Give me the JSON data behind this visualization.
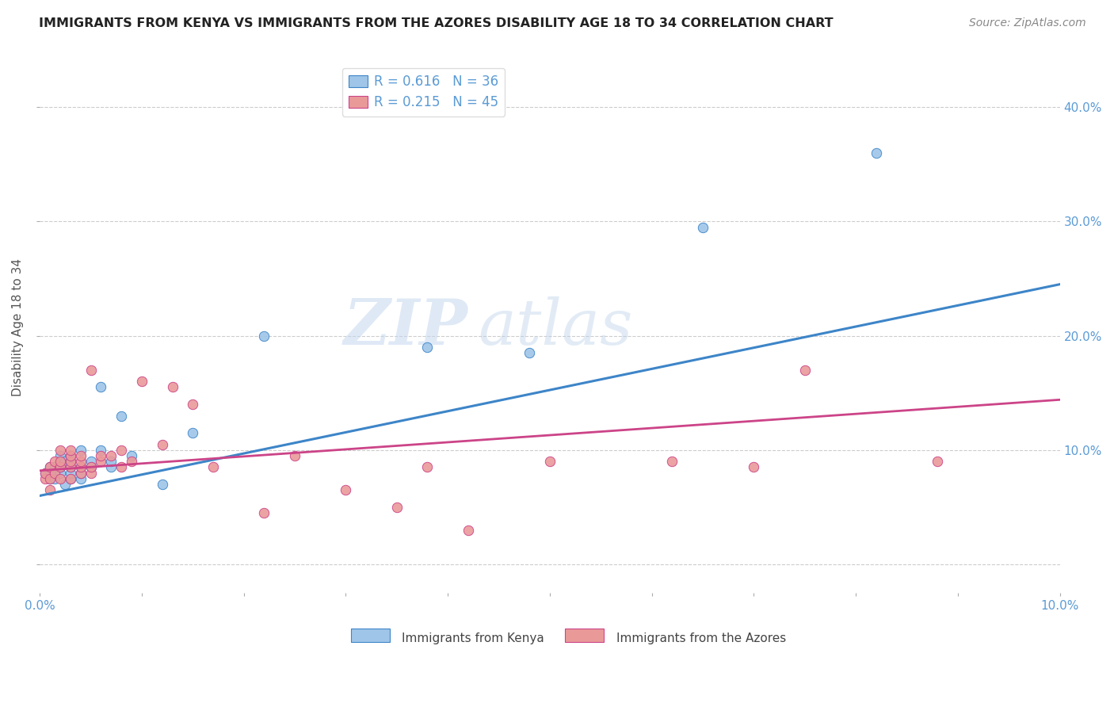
{
  "title": "IMMIGRANTS FROM KENYA VS IMMIGRANTS FROM THE AZORES DISABILITY AGE 18 TO 34 CORRELATION CHART",
  "source": "Source: ZipAtlas.com",
  "ylabel": "Disability Age 18 to 34",
  "x_label_kenya": "Immigrants from Kenya",
  "x_label_azores": "Immigrants from the Azores",
  "y_tick_labels": [
    "",
    "10.0%",
    "20.0%",
    "30.0%",
    "40.0%"
  ],
  "xlim": [
    0.0,
    0.1
  ],
  "ylim": [
    -0.025,
    0.44
  ],
  "R_kenya": 0.616,
  "N_kenya": 36,
  "R_azores": 0.215,
  "N_azores": 45,
  "color_kenya": "#9fc5e8",
  "color_azores": "#ea9999",
  "color_line_kenya": "#3d85c8",
  "color_line_azores": "#cc4488",
  "watermark_ZIP": "ZIP",
  "watermark_atlas": "atlas",
  "background_color": "#ffffff",
  "title_color": "#222222",
  "axis_color": "#5b9bd5",
  "kenya_scatter_x": [
    0.0005,
    0.001,
    0.001,
    0.001,
    0.0015,
    0.0015,
    0.002,
    0.002,
    0.002,
    0.002,
    0.0025,
    0.0025,
    0.003,
    0.003,
    0.003,
    0.003,
    0.003,
    0.004,
    0.004,
    0.004,
    0.004,
    0.005,
    0.005,
    0.006,
    0.006,
    0.007,
    0.007,
    0.008,
    0.009,
    0.012,
    0.015,
    0.022,
    0.038,
    0.048,
    0.065,
    0.082
  ],
  "kenya_scatter_y": [
    0.08,
    0.075,
    0.08,
    0.085,
    0.075,
    0.085,
    0.08,
    0.085,
    0.09,
    0.095,
    0.07,
    0.09,
    0.075,
    0.08,
    0.085,
    0.09,
    0.095,
    0.075,
    0.08,
    0.085,
    0.1,
    0.085,
    0.09,
    0.1,
    0.155,
    0.085,
    0.09,
    0.13,
    0.095,
    0.07,
    0.115,
    0.2,
    0.19,
    0.185,
    0.295,
    0.36
  ],
  "azores_scatter_x": [
    0.0005,
    0.0005,
    0.001,
    0.001,
    0.001,
    0.0015,
    0.0015,
    0.002,
    0.002,
    0.002,
    0.002,
    0.003,
    0.003,
    0.003,
    0.003,
    0.003,
    0.004,
    0.004,
    0.004,
    0.004,
    0.005,
    0.005,
    0.005,
    0.006,
    0.006,
    0.007,
    0.008,
    0.008,
    0.009,
    0.01,
    0.012,
    0.013,
    0.015,
    0.017,
    0.022,
    0.025,
    0.03,
    0.035,
    0.038,
    0.042,
    0.05,
    0.062,
    0.07,
    0.075,
    0.088
  ],
  "azores_scatter_y": [
    0.075,
    0.08,
    0.065,
    0.075,
    0.085,
    0.08,
    0.09,
    0.075,
    0.085,
    0.09,
    0.1,
    0.075,
    0.085,
    0.09,
    0.095,
    0.1,
    0.08,
    0.085,
    0.09,
    0.095,
    0.08,
    0.085,
    0.17,
    0.09,
    0.095,
    0.095,
    0.085,
    0.1,
    0.09,
    0.16,
    0.105,
    0.155,
    0.14,
    0.085,
    0.045,
    0.095,
    0.065,
    0.05,
    0.085,
    0.03,
    0.09,
    0.09,
    0.085,
    0.17,
    0.09
  ],
  "line_kenya_x0": 0.0,
  "line_kenya_y0": 0.06,
  "line_kenya_x1": 0.1,
  "line_kenya_y1": 0.245,
  "line_azores_x0": 0.0,
  "line_azores_y0": 0.082,
  "line_azores_x1": 0.1,
  "line_azores_y1": 0.144
}
